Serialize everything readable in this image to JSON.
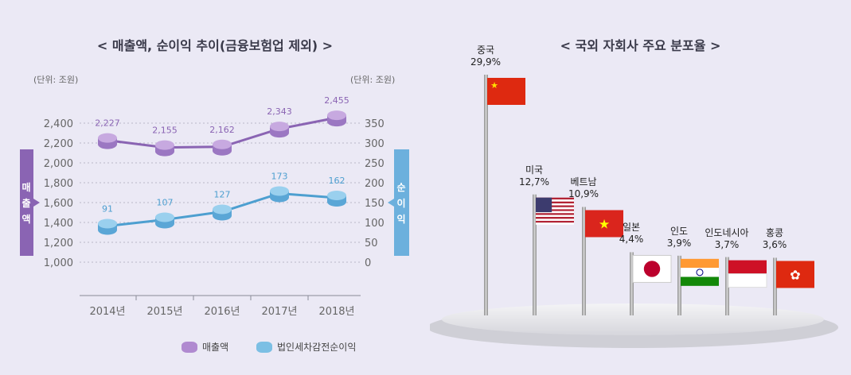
{
  "left": {
    "title": "< 매출액, 순이익 추이(금융보험업 제외) >",
    "unit_left": "(단위: 조원)",
    "unit_right": "(단위: 조원)",
    "axis_left_label": [
      "매",
      "출",
      "액"
    ],
    "axis_right_label": [
      "순",
      "이",
      "익"
    ],
    "legend": {
      "revenue": "매출액",
      "profit": "법인세차감전순이익"
    }
  },
  "right": {
    "title": "< 국외 자회사 주요 분포율 >"
  },
  "colors": {
    "revenue": "#9b6fc0",
    "profit": "#5aa9d8",
    "left_tab": "#8a64b3",
    "right_tab": "#6cb0dd"
  },
  "chart_data": [
    {
      "type": "line",
      "title": "< 매출액, 순이익 추이(금융보험업 제외) >",
      "categories": [
        "2014년",
        "2015년",
        "2016년",
        "2017년",
        "2018년"
      ],
      "series": [
        {
          "name": "매출액",
          "axis": "left",
          "values": [
            2227,
            2155,
            2162,
            2343,
            2455
          ],
          "labels": [
            "2,227",
            "2,155",
            "2,162",
            "2,343",
            "2,455"
          ]
        },
        {
          "name": "법인세차감전순이익",
          "axis": "right",
          "values": [
            91,
            107,
            127,
            173,
            162
          ],
          "labels": [
            "91",
            "107",
            "127",
            "173",
            "162"
          ]
        }
      ],
      "y_left": {
        "ylim": [
          1000,
          2400
        ],
        "ticks": [
          "2,400",
          "2,200",
          "2,000",
          "1,800",
          "1,600",
          "1,400",
          "1,200",
          "1,000"
        ],
        "tick_values": [
          2400,
          2200,
          2000,
          1800,
          1600,
          1400,
          1200,
          1000
        ]
      },
      "y_right": {
        "ylim": [
          0,
          350
        ],
        "ticks": [
          "350",
          "300",
          "250",
          "200",
          "150",
          "100",
          "50",
          "0"
        ],
        "tick_values": [
          350,
          300,
          250,
          200,
          150,
          100,
          50,
          0
        ]
      },
      "grid": true
    },
    {
      "type": "bar",
      "title": "< 국외 자회사 주요 분포율 >",
      "categories": [
        "중국",
        "미국",
        "베트남",
        "일본",
        "인도",
        "인도네시아",
        "홍콩"
      ],
      "values": [
        29.9,
        12.7,
        10.9,
        4.4,
        3.9,
        3.7,
        3.6
      ],
      "labels": [
        "29,9%",
        "12,7%",
        "10,9%",
        "4,4%",
        "3,9%",
        "3,7%",
        "3,6%"
      ],
      "flag_icons": [
        "china-flag-icon",
        "usa-flag-icon",
        "vietnam-flag-icon",
        "japan-flag-icon",
        "india-flag-icon",
        "indonesia-flag-icon",
        "hongkong-flag-icon"
      ]
    }
  ]
}
